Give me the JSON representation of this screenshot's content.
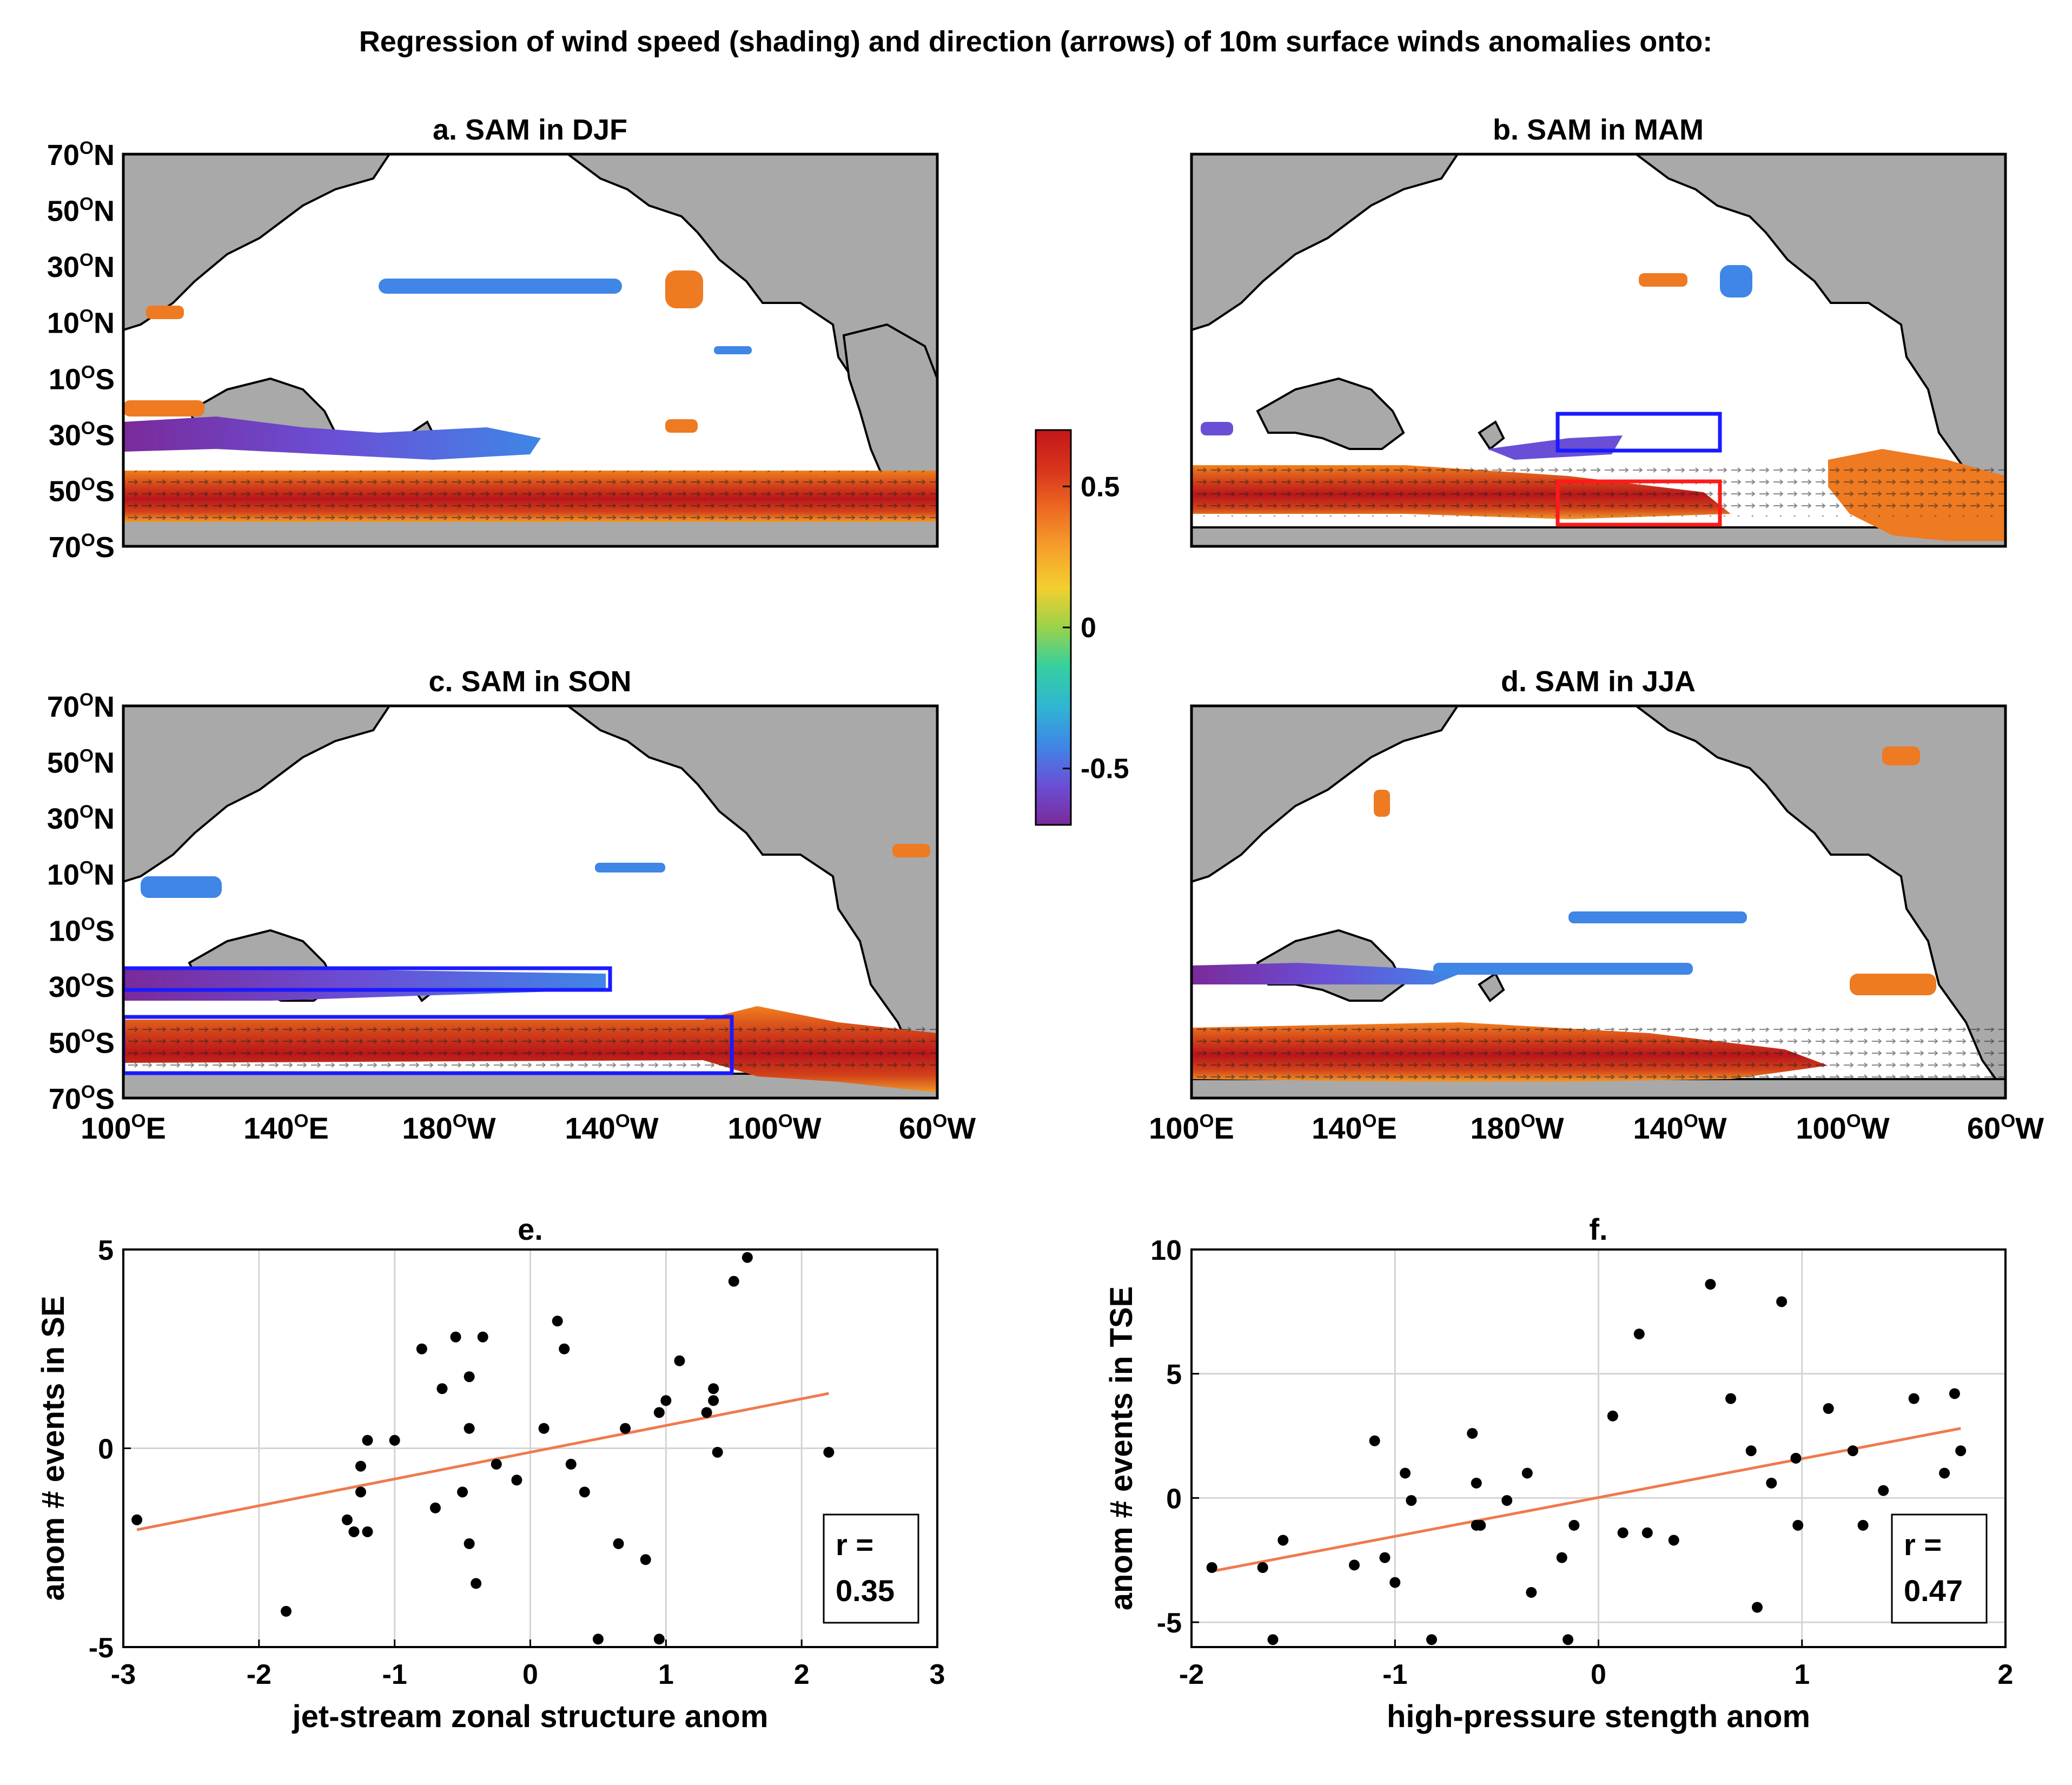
{
  "figure": {
    "title": "Regression of wind speed (shading) and direction (arrows) of 10m surface winds anomalies onto:"
  },
  "maps": {
    "a": {
      "title": "a. SAM in DJF"
    },
    "b": {
      "title": "b. SAM in MAM"
    },
    "c": {
      "title": "c. SAM in SON"
    },
    "d": {
      "title": "d. SAM in JJA"
    },
    "lat_labels": [
      "70",
      "50",
      "30",
      "10",
      "10",
      "30",
      "50",
      "70"
    ],
    "lat_hemis": [
      "N",
      "N",
      "N",
      "N",
      "S",
      "S",
      "S",
      "S"
    ],
    "lon_labels": [
      "100",
      "140",
      "180",
      "140",
      "100",
      "60"
    ],
    "lon_hemis": [
      "E",
      "E",
      "W",
      "W",
      "W",
      "W"
    ],
    "degree_symbol": "O"
  },
  "colorbar": {
    "ticks": [
      "0.5",
      "0",
      "-0.5"
    ],
    "range": [
      -0.7,
      0.7
    ],
    "colors": [
      "#7a2a9a",
      "#6a4fd6",
      "#3f86e6",
      "#2fb6d2",
      "#35cfa0",
      "#9ad24a",
      "#f2cf2f",
      "#f6a02c",
      "#ee6a22",
      "#d8341c",
      "#c4161a"
    ]
  },
  "land_color": "#a9a9a9",
  "box_colors": {
    "blue": "#1a1aff",
    "red": "#ff1a1a"
  },
  "fit_line_color": "#ef7a4c",
  "chart_data": [
    {
      "id": "e",
      "type": "scatter",
      "title": "e.",
      "xlabel": "jet-stream zonal structure anom",
      "ylabel": "anom # events in SE",
      "xlim": [
        -3,
        3
      ],
      "ylim": [
        -5,
        5
      ],
      "xticks": [
        "-3",
        "-2",
        "-1",
        "0",
        "1",
        "2",
        "3"
      ],
      "yticks": [
        "5",
        "0",
        "-5"
      ],
      "points": [
        [
          -2.9,
          -1.8
        ],
        [
          -1.8,
          -4.1
        ],
        [
          -1.35,
          -1.8
        ],
        [
          -1.3,
          -2.1
        ],
        [
          -1.25,
          -1.1
        ],
        [
          -1.25,
          -0.45
        ],
        [
          -1.2,
          -2.1
        ],
        [
          -1.2,
          0.2
        ],
        [
          -1.0,
          0.2
        ],
        [
          -0.8,
          2.5
        ],
        [
          -0.7,
          -1.5
        ],
        [
          -0.65,
          1.5
        ],
        [
          -0.55,
          2.8
        ],
        [
          -0.5,
          -1.1
        ],
        [
          -0.45,
          1.8
        ],
        [
          -0.45,
          0.5
        ],
        [
          -0.45,
          -2.4
        ],
        [
          -0.4,
          -3.4
        ],
        [
          -0.35,
          2.8
        ],
        [
          -0.25,
          -0.4
        ],
        [
          -0.1,
          -0.8
        ],
        [
          0.1,
          0.5
        ],
        [
          0.2,
          3.2
        ],
        [
          0.25,
          2.5
        ],
        [
          0.3,
          -0.4
        ],
        [
          0.4,
          -1.1
        ],
        [
          0.5,
          -4.8
        ],
        [
          0.65,
          -2.4
        ],
        [
          0.7,
          0.5
        ],
        [
          0.85,
          -2.8
        ],
        [
          0.95,
          0.9
        ],
        [
          0.95,
          -4.8
        ],
        [
          1.0,
          1.2
        ],
        [
          1.1,
          2.2
        ],
        [
          1.3,
          0.9
        ],
        [
          1.35,
          1.5
        ],
        [
          1.35,
          1.2
        ],
        [
          1.38,
          -0.1
        ],
        [
          1.5,
          4.2
        ],
        [
          1.6,
          4.8
        ],
        [
          2.2,
          -0.1
        ]
      ],
      "fit": {
        "x": [
          -2.9,
          2.2
        ],
        "y": [
          -2.05,
          1.38
        ]
      },
      "r_label": "r =",
      "r_value": "0.35"
    },
    {
      "id": "f",
      "type": "scatter",
      "title": "f.",
      "xlabel": "high-pressure stength anom",
      "ylabel": "anom # events in TSE",
      "xlim": [
        -2,
        2
      ],
      "ylim": [
        -6,
        10
      ],
      "xticks": [
        "-2",
        "-1",
        "0",
        "1",
        "2"
      ],
      "yticks": [
        "10",
        "5",
        "0",
        "-5"
      ],
      "points": [
        [
          -1.9,
          -2.8
        ],
        [
          -1.65,
          -2.8
        ],
        [
          -1.6,
          -5.7
        ],
        [
          -1.55,
          -1.7
        ],
        [
          -1.2,
          -2.7
        ],
        [
          -1.1,
          2.3
        ],
        [
          -1.05,
          -2.4
        ],
        [
          -1.0,
          -3.4
        ],
        [
          -0.95,
          1.0
        ],
        [
          -0.92,
          -0.1
        ],
        [
          -0.82,
          -5.7
        ],
        [
          -0.62,
          2.6
        ],
        [
          -0.6,
          0.6
        ],
        [
          -0.6,
          -1.1
        ],
        [
          -0.58,
          -1.1
        ],
        [
          -0.45,
          -0.1
        ],
        [
          -0.35,
          1.0
        ],
        [
          -0.33,
          -3.8
        ],
        [
          -0.18,
          -2.4
        ],
        [
          -0.15,
          -5.7
        ],
        [
          -0.12,
          -1.1
        ],
        [
          0.07,
          3.3
        ],
        [
          0.12,
          -1.4
        ],
        [
          0.2,
          6.6
        ],
        [
          0.24,
          -1.4
        ],
        [
          0.37,
          -1.7
        ],
        [
          0.55,
          8.6
        ],
        [
          0.65,
          4.0
        ],
        [
          0.75,
          1.9
        ],
        [
          0.78,
          -4.4
        ],
        [
          0.85,
          0.6
        ],
        [
          0.9,
          7.9
        ],
        [
          0.97,
          1.6
        ],
        [
          0.98,
          -1.1
        ],
        [
          1.13,
          3.6
        ],
        [
          1.25,
          1.9
        ],
        [
          1.3,
          -1.1
        ],
        [
          1.4,
          0.3
        ],
        [
          1.55,
          4.0
        ],
        [
          1.7,
          1.0
        ],
        [
          1.75,
          4.2
        ],
        [
          1.78,
          1.9
        ]
      ],
      "fit": {
        "x": [
          -1.9,
          1.78
        ],
        "y": [
          -2.95,
          2.8
        ]
      },
      "r_label": "r =",
      "r_value": "0.47"
    }
  ]
}
